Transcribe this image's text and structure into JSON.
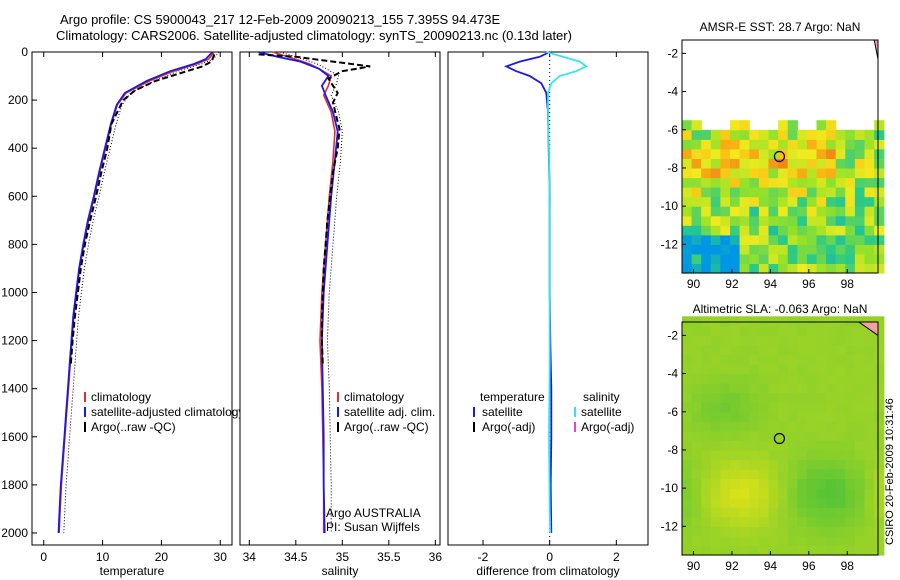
{
  "title_line1": "Argo profile: CS 5900043_217 12-Feb-2009 20090213_155 7.395S 94.473E",
  "title_line2": "Climatology: CARS2006. Satellite-adjusted climatology: synTS_20090213.nc (0.13d later)",
  "credit": "CSIRO 20-Feb-2009 10:31:46",
  "annotation": {
    "line1": "Argo AUSTRALIA",
    "line2": "PI: Susan Wijffels"
  },
  "colors": {
    "clim": "#e03030",
    "sat": "#1a1ae6",
    "argo": "#000000",
    "sat_salt": "#33e6ee",
    "argo_salt": "#e040e0"
  },
  "chart_data": [
    {
      "type": "line",
      "name": "temperature",
      "xlabel": "temperature",
      "xlim": [
        -2,
        32
      ],
      "ylim": [
        0,
        2050
      ],
      "xticks": [
        0,
        10,
        20,
        30
      ],
      "yticks": [
        0,
        200,
        400,
        600,
        800,
        1000,
        1200,
        1400,
        1600,
        1800,
        2000
      ],
      "y_reversed": true,
      "legend": [
        "climatology",
        "satellite-adjusted climatology",
        "Argo(..raw -QC)"
      ],
      "series": [
        {
          "name": "climatology",
          "style": "clim",
          "points": [
            [
              29,
              0
            ],
            [
              28,
              30
            ],
            [
              26,
              50
            ],
            [
              22,
              80
            ],
            [
              18,
              120
            ],
            [
              14,
              170
            ],
            [
              12.5,
              220
            ],
            [
              11.5,
              300
            ],
            [
              10.5,
              400
            ],
            [
              9.5,
              500
            ],
            [
              8.6,
              600
            ],
            [
              7.6,
              700
            ],
            [
              6.8,
              800
            ],
            [
              6.1,
              900
            ],
            [
              5.6,
              1000
            ],
            [
              5.1,
              1100
            ],
            [
              4.8,
              1200
            ],
            [
              4.5,
              1300
            ],
            [
              4.2,
              1400
            ],
            [
              3.9,
              1500
            ],
            [
              3.6,
              1600
            ],
            [
              3.3,
              1700
            ],
            [
              3.0,
              1800
            ],
            [
              2.8,
              1900
            ],
            [
              2.6,
              2000
            ]
          ]
        },
        {
          "name": "satellite-adjusted climatology",
          "style": "sat",
          "points": [
            [
              28.7,
              0
            ],
            [
              27.5,
              30
            ],
            [
              25.5,
              50
            ],
            [
              21.5,
              80
            ],
            [
              17.5,
              120
            ],
            [
              13.8,
              170
            ],
            [
              12.4,
              220
            ],
            [
              11.4,
              300
            ],
            [
              10.4,
              400
            ],
            [
              9.4,
              500
            ],
            [
              8.5,
              600
            ],
            [
              7.5,
              700
            ],
            [
              6.7,
              800
            ],
            [
              6.0,
              900
            ],
            [
              5.5,
              1000
            ],
            [
              5.0,
              1100
            ],
            [
              4.7,
              1200
            ],
            [
              4.4,
              1300
            ],
            [
              4.1,
              1400
            ],
            [
              3.8,
              1500
            ],
            [
              3.5,
              1600
            ],
            [
              3.2,
              1700
            ],
            [
              2.9,
              1800
            ],
            [
              2.7,
              1900
            ],
            [
              2.5,
              2000
            ]
          ]
        },
        {
          "name": "Argo(..raw -QC)",
          "style": "argo",
          "points": [
            [
              29,
              10
            ],
            [
              28.5,
              40
            ],
            [
              27,
              60
            ],
            [
              23,
              90
            ],
            [
              19,
              120
            ],
            [
              15.5,
              160
            ],
            [
              13.5,
              200
            ],
            [
              12.5,
              250
            ],
            [
              11.5,
              300
            ],
            [
              10.8,
              400
            ],
            [
              9.8,
              500
            ],
            [
              8.9,
              600
            ],
            [
              7.9,
              700
            ],
            [
              7.0,
              800
            ],
            [
              6.3,
              900
            ],
            [
              5.8,
              1000
            ],
            [
              5.3,
              1100
            ],
            [
              4.9,
              1200
            ],
            [
              4.6,
              1300
            ]
          ]
        }
      ]
    },
    {
      "type": "line",
      "name": "salinity",
      "xlabel": "salinity",
      "xlim": [
        33.9,
        36.05
      ],
      "ylim": [
        0,
        2050
      ],
      "xticks": [
        34,
        34.5,
        35,
        35.5,
        36
      ],
      "yticks": [],
      "y_reversed": true,
      "legend": [
        "climatology",
        "satellite adj. clim.",
        "Argo(..raw -QC)"
      ],
      "series": [
        {
          "name": "climatology",
          "style": "clim",
          "points": [
            [
              34.25,
              0
            ],
            [
              34.5,
              30
            ],
            [
              34.65,
              50
            ],
            [
              34.75,
              70
            ],
            [
              34.88,
              100
            ],
            [
              34.85,
              140
            ],
            [
              34.8,
              180
            ],
            [
              34.88,
              250
            ],
            [
              34.92,
              330
            ],
            [
              34.9,
              450
            ],
            [
              34.86,
              600
            ],
            [
              34.82,
              800
            ],
            [
              34.78,
              1000
            ],
            [
              34.76,
              1200
            ],
            [
              34.78,
              1400
            ],
            [
              34.79,
              1600
            ],
            [
              34.8,
              1800
            ],
            [
              34.8,
              2000
            ]
          ]
        },
        {
          "name": "satellite adj. clim.",
          "style": "sat",
          "points": [
            [
              34.1,
              0
            ],
            [
              34.3,
              20
            ],
            [
              34.55,
              40
            ],
            [
              34.75,
              70
            ],
            [
              34.85,
              100
            ],
            [
              34.78,
              140
            ],
            [
              34.82,
              180
            ],
            [
              34.9,
              250
            ],
            [
              34.95,
              330
            ],
            [
              34.92,
              450
            ],
            [
              34.88,
              600
            ],
            [
              34.84,
              800
            ],
            [
              34.8,
              1000
            ],
            [
              34.78,
              1200
            ],
            [
              34.79,
              1400
            ],
            [
              34.8,
              1600
            ],
            [
              34.8,
              1800
            ],
            [
              34.81,
              2000
            ]
          ]
        },
        {
          "name": "Argo(..raw -QC)",
          "style": "argo",
          "points": [
            [
              34.1,
              10
            ],
            [
              34.5,
              20
            ],
            [
              34.9,
              40
            ],
            [
              35.3,
              60
            ],
            [
              35.0,
              80
            ],
            [
              34.85,
              110
            ],
            [
              34.9,
              140
            ],
            [
              34.95,
              170
            ],
            [
              34.9,
              210
            ],
            [
              34.93,
              260
            ],
            [
              34.97,
              320
            ],
            [
              34.95,
              400
            ],
            [
              34.9,
              500
            ],
            [
              34.87,
              600
            ],
            [
              34.84,
              700
            ],
            [
              34.82,
              800
            ],
            [
              34.8,
              900
            ],
            [
              34.79,
              1000
            ],
            [
              34.78,
              1100
            ],
            [
              34.78,
              1200
            ],
            [
              34.79,
              1300
            ]
          ]
        }
      ]
    },
    {
      "type": "line",
      "name": "difference",
      "xlabel": "difference from climatology",
      "xlim": [
        -3.05,
        2.95
      ],
      "ylim": [
        0,
        2050
      ],
      "xticks": [
        -2,
        0,
        2
      ],
      "yticks": [],
      "y_reversed": true,
      "legend_left": {
        "header": "temperature",
        "items": [
          "satellite",
          "Argo(-adj)"
        ]
      },
      "legend_right": {
        "header": "salinity",
        "items": [
          "satellite",
          "Argo(-adj)"
        ]
      },
      "series": [
        {
          "name": "temperature satellite",
          "style": "sat",
          "points": [
            [
              0,
              0
            ],
            [
              -0.3,
              20
            ],
            [
              -0.9,
              40
            ],
            [
              -1.3,
              60
            ],
            [
              -1.0,
              80
            ],
            [
              -0.6,
              100
            ],
            [
              -0.25,
              130
            ],
            [
              -0.1,
              170
            ],
            [
              -0.05,
              250
            ],
            [
              -0.03,
              400
            ],
            [
              0,
              600
            ],
            [
              0,
              800
            ],
            [
              0,
              1000
            ],
            [
              0.02,
              1200
            ],
            [
              0.05,
              1400
            ],
            [
              0.05,
              1600
            ],
            [
              0.03,
              1800
            ],
            [
              0.05,
              2000
            ]
          ]
        },
        {
          "name": "salinity satellite",
          "style": "sat_salt",
          "points": [
            [
              -0.1,
              0
            ],
            [
              0.4,
              20
            ],
            [
              0.9,
              40
            ],
            [
              1.1,
              60
            ],
            [
              0.8,
              80
            ],
            [
              0.3,
              100
            ],
            [
              0.05,
              130
            ],
            [
              -0.05,
              170
            ],
            [
              -0.05,
              250
            ],
            [
              -0.02,
              400
            ],
            [
              0,
              700
            ],
            [
              0,
              1000
            ],
            [
              0,
              1300
            ],
            [
              -0.02,
              1600
            ],
            [
              0,
              1900
            ],
            [
              0.02,
              2000
            ]
          ]
        }
      ]
    },
    {
      "type": "heatmap",
      "name": "amsre_sst",
      "title": "AMSR-E SST: 28.7 Argo: NaN",
      "xlim": [
        89.4,
        99.6
      ],
      "ylim": [
        -13.5,
        -1.3
      ],
      "xticks": [
        90,
        92,
        94,
        96,
        98
      ],
      "yticks": [
        -2,
        -4,
        -6,
        -8,
        -10,
        -12
      ],
      "data_bottom": -13.5,
      "data_top": -5.8,
      "marker": [
        94.47,
        -7.4
      ],
      "land": [
        [
          99.4,
          -1.3
        ],
        [
          99.6,
          -1.3
        ],
        [
          99.6,
          -2.3
        ]
      ]
    },
    {
      "type": "heatmap",
      "name": "altimetric_sla",
      "title": "Altimetric SLA: -0.063 Argo: NaN",
      "xlim": [
        89.4,
        99.6
      ],
      "ylim": [
        -13.5,
        -1.3
      ],
      "xticks": [
        90,
        92,
        94,
        96,
        98
      ],
      "yticks": [
        -2,
        -4,
        -6,
        -8,
        -10,
        -12
      ],
      "marker": [
        94.47,
        -7.4
      ],
      "land": [
        [
          98.6,
          -1.3
        ],
        [
          99.6,
          -1.3
        ],
        [
          99.6,
          -2.0
        ]
      ]
    }
  ]
}
